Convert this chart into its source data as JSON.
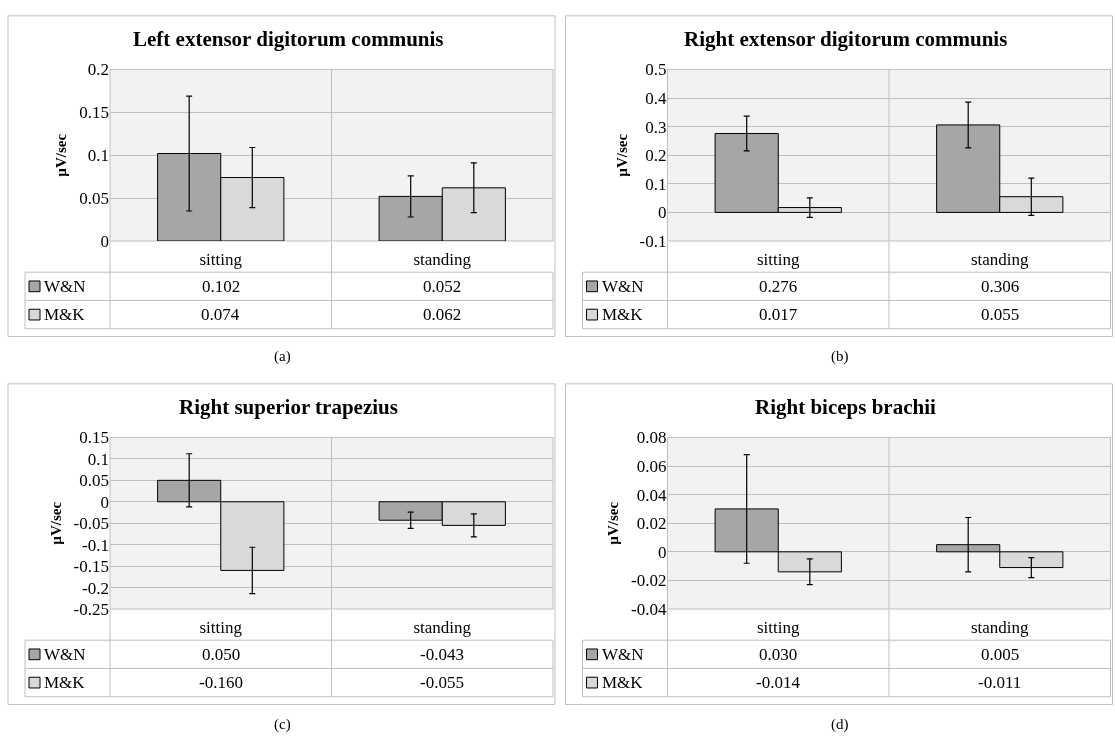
{
  "chart_data": [
    {
      "type": "bar",
      "title": "Left extensor digitorum communis",
      "ylabel": "µV/sec",
      "categories": [
        "sitting",
        "standing"
      ],
      "ylim": [
        0,
        0.2
      ],
      "yticks": [
        0,
        0.05,
        0.1,
        0.15,
        0.2
      ],
      "grid": "y",
      "legend": "bottom left",
      "annotations": [
        "(a)"
      ],
      "series": [
        {
          "name": "W&N",
          "color": "#a6a6a6",
          "values": [
            0.102,
            0.052
          ],
          "errors": [
            0.067,
            0.024
          ],
          "value_labels": [
            "0.102",
            "0.052"
          ]
        },
        {
          "name": "M&K",
          "color": "#d9d9d9",
          "values": [
            0.074,
            0.062
          ],
          "errors": [
            0.035,
            0.029
          ],
          "value_labels": [
            "0.074",
            "0.062"
          ]
        }
      ]
    },
    {
      "type": "bar",
      "title": "Right extensor digitorum communis",
      "ylabel": "µV/sec",
      "categories": [
        "sitting",
        "standing"
      ],
      "ylim": [
        -0.1,
        0.5
      ],
      "yticks": [
        -0.1,
        0,
        0.1,
        0.2,
        0.3,
        0.4,
        0.5
      ],
      "grid": "y",
      "legend": "bottom left",
      "annotations": [
        "(b)"
      ],
      "series": [
        {
          "name": "W&N",
          "color": "#a6a6a6",
          "values": [
            0.276,
            0.306
          ],
          "errors": [
            0.061,
            0.08
          ],
          "value_labels": [
            "0.276",
            "0.306"
          ]
        },
        {
          "name": "M&K",
          "color": "#d9d9d9",
          "values": [
            0.017,
            0.055
          ],
          "errors": [
            0.034,
            0.065
          ],
          "value_labels": [
            "0.017",
            "0.055"
          ]
        }
      ]
    },
    {
      "type": "bar",
      "title": "Right superior trapezius",
      "ylabel": "µV/sec",
      "categories": [
        "sitting",
        "standing"
      ],
      "ylim": [
        -0.25,
        0.15
      ],
      "yticks": [
        -0.25,
        -0.2,
        -0.15,
        -0.1,
        -0.05,
        0,
        0.05,
        0.1,
        0.15
      ],
      "grid": "y",
      "legend": "bottom left",
      "annotations": [
        "(c)"
      ],
      "series": [
        {
          "name": "W&N",
          "color": "#a6a6a6",
          "values": [
            0.05,
            -0.043
          ],
          "errors": [
            0.062,
            0.019
          ],
          "value_labels": [
            "0.050",
            "-0.043"
          ]
        },
        {
          "name": "M&K",
          "color": "#d9d9d9",
          "values": [
            -0.16,
            -0.055
          ],
          "errors": [
            0.054,
            0.027
          ],
          "value_labels": [
            "-0.160",
            "-0.055"
          ]
        }
      ]
    },
    {
      "type": "bar",
      "title": "Right biceps brachii",
      "ylabel": "µV/sec",
      "categories": [
        "sitting",
        "standing"
      ],
      "ylim": [
        -0.04,
        0.08
      ],
      "yticks": [
        -0.04,
        -0.02,
        0,
        0.02,
        0.04,
        0.06,
        0.08
      ],
      "grid": "y",
      "legend": "bottom left",
      "annotations": [
        "(d)"
      ],
      "series": [
        {
          "name": "W&N",
          "color": "#a6a6a6",
          "values": [
            0.03,
            0.005
          ],
          "errors": [
            0.038,
            0.019
          ],
          "value_labels": [
            "0.030",
            "0.005"
          ]
        },
        {
          "name": "M&K",
          "color": "#d9d9d9",
          "values": [
            -0.014,
            -0.011
          ],
          "errors": [
            0.009,
            0.007
          ],
          "value_labels": [
            "-0.014",
            "-0.011"
          ]
        }
      ]
    }
  ]
}
